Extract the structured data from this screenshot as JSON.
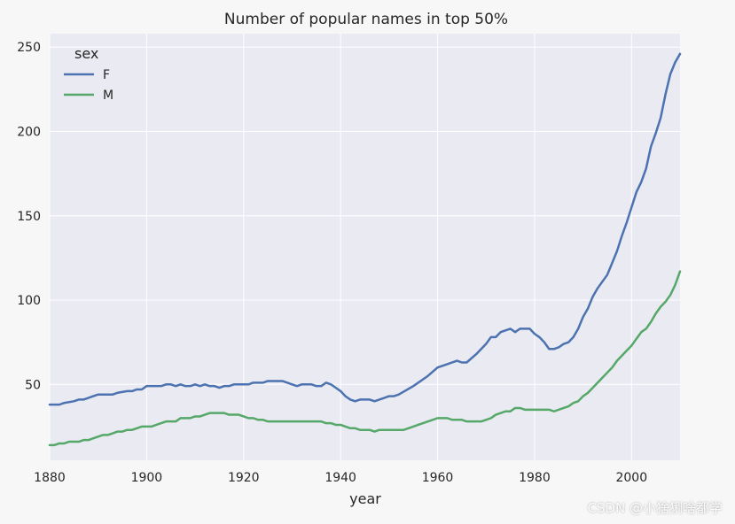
{
  "watermark": "CSDN @小猞猁啥都学",
  "chart_data": {
    "type": "line",
    "title": "Number of popular names in top 50%",
    "xlabel": "year",
    "ylabel": "",
    "xlim": [
      1880,
      2010
    ],
    "ylim": [
      5,
      258
    ],
    "xticks": [
      1880,
      1900,
      1920,
      1940,
      1960,
      1980,
      2000
    ],
    "yticks": [
      50,
      100,
      150,
      200,
      250
    ],
    "grid": true,
    "legend": {
      "title": "sex",
      "placement": "top-left"
    },
    "colors": {
      "background": "#eaeaf2",
      "grid": "#ffffff",
      "F": "#4c72b0",
      "M": "#55a868"
    },
    "series": [
      {
        "name": "F",
        "points": [
          [
            1880,
            38
          ],
          [
            1882,
            38
          ],
          [
            1883,
            39
          ],
          [
            1885,
            40
          ],
          [
            1886,
            41
          ],
          [
            1887,
            41
          ],
          [
            1889,
            43
          ],
          [
            1890,
            44
          ],
          [
            1893,
            44
          ],
          [
            1894,
            45
          ],
          [
            1896,
            46
          ],
          [
            1897,
            46
          ],
          [
            1898,
            47
          ],
          [
            1899,
            47
          ],
          [
            1900,
            49
          ],
          [
            1903,
            49
          ],
          [
            1904,
            50
          ],
          [
            1905,
            50
          ],
          [
            1906,
            49
          ],
          [
            1907,
            50
          ],
          [
            1908,
            49
          ],
          [
            1909,
            49
          ],
          [
            1910,
            50
          ],
          [
            1911,
            49
          ],
          [
            1912,
            50
          ],
          [
            1913,
            49
          ],
          [
            1914,
            49
          ],
          [
            1915,
            48
          ],
          [
            1916,
            49
          ],
          [
            1917,
            49
          ],
          [
            1918,
            50
          ],
          [
            1921,
            50
          ],
          [
            1922,
            51
          ],
          [
            1924,
            51
          ],
          [
            1925,
            52
          ],
          [
            1928,
            52
          ],
          [
            1930,
            50
          ],
          [
            1931,
            49
          ],
          [
            1932,
            50
          ],
          [
            1934,
            50
          ],
          [
            1935,
            49
          ],
          [
            1936,
            49
          ],
          [
            1937,
            51
          ],
          [
            1938,
            50
          ],
          [
            1940,
            46
          ],
          [
            1941,
            43
          ],
          [
            1942,
            41
          ],
          [
            1943,
            40
          ],
          [
            1944,
            41
          ],
          [
            1946,
            41
          ],
          [
            1947,
            40
          ],
          [
            1949,
            42
          ],
          [
            1950,
            43
          ],
          [
            1951,
            43
          ],
          [
            1952,
            44
          ],
          [
            1955,
            49
          ],
          [
            1958,
            55
          ],
          [
            1960,
            60
          ],
          [
            1962,
            62
          ],
          [
            1964,
            64
          ],
          [
            1965,
            63
          ],
          [
            1966,
            63
          ],
          [
            1968,
            68
          ],
          [
            1970,
            74
          ],
          [
            1971,
            78
          ],
          [
            1972,
            78
          ],
          [
            1973,
            81
          ],
          [
            1975,
            83
          ],
          [
            1976,
            81
          ],
          [
            1977,
            83
          ],
          [
            1978,
            83
          ],
          [
            1979,
            83
          ],
          [
            1980,
            80
          ],
          [
            1981,
            78
          ],
          [
            1982,
            75
          ],
          [
            1983,
            71
          ],
          [
            1984,
            71
          ],
          [
            1985,
            72
          ],
          [
            1986,
            74
          ],
          [
            1987,
            75
          ],
          [
            1988,
            78
          ],
          [
            1989,
            83
          ],
          [
            1990,
            90
          ],
          [
            1991,
            95
          ],
          [
            1992,
            102
          ],
          [
            1993,
            107
          ],
          [
            1994,
            111
          ],
          [
            1995,
            115
          ],
          [
            1996,
            122
          ],
          [
            1997,
            129
          ],
          [
            1998,
            138
          ],
          [
            1999,
            146
          ],
          [
            2000,
            155
          ],
          [
            2001,
            164
          ],
          [
            2002,
            170
          ],
          [
            2003,
            178
          ],
          [
            2004,
            191
          ],
          [
            2005,
            199
          ],
          [
            2006,
            208
          ],
          [
            2007,
            222
          ],
          [
            2008,
            234
          ],
          [
            2009,
            241
          ],
          [
            2010,
            246
          ]
        ]
      },
      {
        "name": "M",
        "points": [
          [
            1880,
            14
          ],
          [
            1881,
            14
          ],
          [
            1882,
            15
          ],
          [
            1883,
            15
          ],
          [
            1884,
            16
          ],
          [
            1886,
            16
          ],
          [
            1887,
            17
          ],
          [
            1888,
            17
          ],
          [
            1889,
            18
          ],
          [
            1890,
            19
          ],
          [
            1891,
            20
          ],
          [
            1892,
            20
          ],
          [
            1893,
            21
          ],
          [
            1894,
            22
          ],
          [
            1895,
            22
          ],
          [
            1896,
            23
          ],
          [
            1897,
            23
          ],
          [
            1898,
            24
          ],
          [
            1899,
            25
          ],
          [
            1901,
            25
          ],
          [
            1902,
            26
          ],
          [
            1903,
            27
          ],
          [
            1904,
            28
          ],
          [
            1906,
            28
          ],
          [
            1907,
            30
          ],
          [
            1909,
            30
          ],
          [
            1910,
            31
          ],
          [
            1911,
            31
          ],
          [
            1912,
            32
          ],
          [
            1913,
            33
          ],
          [
            1916,
            33
          ],
          [
            1917,
            32
          ],
          [
            1919,
            32
          ],
          [
            1920,
            31
          ],
          [
            1921,
            30
          ],
          [
            1922,
            30
          ],
          [
            1923,
            29
          ],
          [
            1924,
            29
          ],
          [
            1925,
            28
          ],
          [
            1936,
            28
          ],
          [
            1937,
            27
          ],
          [
            1938,
            27
          ],
          [
            1939,
            26
          ],
          [
            1940,
            26
          ],
          [
            1941,
            25
          ],
          [
            1942,
            24
          ],
          [
            1943,
            24
          ],
          [
            1944,
            23
          ],
          [
            1946,
            23
          ],
          [
            1947,
            22
          ],
          [
            1948,
            23
          ],
          [
            1952,
            23
          ],
          [
            1953,
            23
          ],
          [
            1954,
            24
          ],
          [
            1955,
            25
          ],
          [
            1956,
            26
          ],
          [
            1958,
            28
          ],
          [
            1959,
            29
          ],
          [
            1960,
            30
          ],
          [
            1962,
            30
          ],
          [
            1963,
            29
          ],
          [
            1965,
            29
          ],
          [
            1966,
            28
          ],
          [
            1969,
            28
          ],
          [
            1970,
            29
          ],
          [
            1971,
            30
          ],
          [
            1972,
            32
          ],
          [
            1973,
            33
          ],
          [
            1974,
            34
          ],
          [
            1975,
            34
          ],
          [
            1976,
            36
          ],
          [
            1977,
            36
          ],
          [
            1978,
            35
          ],
          [
            1983,
            35
          ],
          [
            1984,
            34
          ],
          [
            1985,
            35
          ],
          [
            1986,
            36
          ],
          [
            1987,
            37
          ],
          [
            1988,
            39
          ],
          [
            1989,
            40
          ],
          [
            1990,
            43
          ],
          [
            1991,
            45
          ],
          [
            1992,
            48
          ],
          [
            1993,
            51
          ],
          [
            1994,
            54
          ],
          [
            1995,
            57
          ],
          [
            1996,
            60
          ],
          [
            1997,
            64
          ],
          [
            1998,
            67
          ],
          [
            1999,
            70
          ],
          [
            2000,
            73
          ],
          [
            2001,
            77
          ],
          [
            2002,
            81
          ],
          [
            2003,
            83
          ],
          [
            2004,
            87
          ],
          [
            2005,
            92
          ],
          [
            2006,
            96
          ],
          [
            2007,
            99
          ],
          [
            2008,
            103
          ],
          [
            2009,
            109
          ],
          [
            2010,
            117
          ]
        ]
      }
    ]
  }
}
